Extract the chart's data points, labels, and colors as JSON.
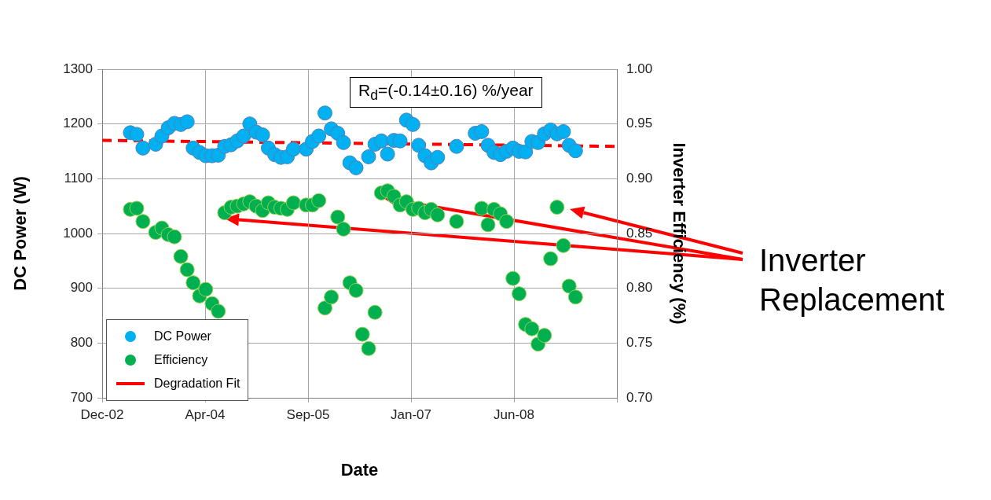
{
  "chart_data": {
    "type": "scatter",
    "xlabel": "Date",
    "ylabel": "DC Power (W)",
    "y2label": "Inverter Efficiency (%)",
    "xlim": [
      "2002-12-15",
      "2009-10-19"
    ],
    "xticks": [
      {
        "value": "2002-12-15",
        "label": "Dec-02"
      },
      {
        "value": "2004-04-28",
        "label": "Apr-04"
      },
      {
        "value": "2005-09-10",
        "label": "Sep-05"
      },
      {
        "value": "2007-01-23",
        "label": "Jan-07"
      },
      {
        "value": "2008-06-06",
        "label": "Jun-08"
      },
      {
        "value": "2009-10-19",
        "label": null
      }
    ],
    "ylim": [
      700,
      1300
    ],
    "yticks": [
      700,
      800,
      900,
      1000,
      1100,
      1200,
      1300
    ],
    "y2lim": [
      0.7,
      1.0
    ],
    "y2ticks": [
      {
        "value": 0.7,
        "label": "0.70"
      },
      0.75,
      {
        "value": 0.8,
        "label": "0.80"
      },
      0.85,
      {
        "value": 0.9,
        "label": "0.90"
      },
      0.95,
      {
        "value": 1.0,
        "label": "1.00"
      }
    ],
    "grid": true,
    "legend": "bottom left",
    "annotations": [
      "R$_{d}$=(-0.14±0.16) %/year",
      "Inverter Replacement"
    ],
    "series": [
      {
        "name": "DC Power",
        "marker": "circle",
        "color": "#00b0f0",
        "x": [
          "2003-05",
          "2003-06",
          "2003-07",
          "2003-09",
          "2003-10",
          "2003-11",
          "2003-12",
          "2004-01",
          "2004-02",
          "2004-03",
          "2004-04",
          "2004-05",
          "2004-06",
          "2004-07",
          "2004-08",
          "2004-09",
          "2004-10",
          "2004-11",
          "2004-12",
          "2005-01",
          "2005-02",
          "2005-03",
          "2005-04",
          "2005-05",
          "2005-06",
          "2005-07",
          "2005-09",
          "2005-10",
          "2005-11",
          "2005-12",
          "2006-01",
          "2006-02",
          "2006-03",
          "2006-04",
          "2006-05",
          "2006-07",
          "2006-08",
          "2006-09",
          "2006-10",
          "2006-11",
          "2006-12",
          "2007-01",
          "2007-02",
          "2007-03",
          "2007-04",
          "2007-05",
          "2007-06",
          "2007-09",
          "2007-12",
          "2008-01",
          "2008-02",
          "2008-03",
          "2008-04",
          "2008-05",
          "2008-06",
          "2008-07",
          "2008-08",
          "2008-09",
          "2008-10",
          "2008-11",
          "2008-12",
          "2009-01",
          "2009-02",
          "2009-03",
          "2009-04"
        ],
        "values": [
          1184,
          1181,
          1156,
          1163,
          1178,
          1193,
          1201,
          1199,
          1204,
          1156,
          1148,
          1142,
          1142,
          1143,
          1159,
          1162,
          1169,
          1178,
          1200,
          1185,
          1180,
          1156,
          1144,
          1139,
          1140,
          1154,
          1154,
          1168,
          1178,
          1220,
          1191,
          1183,
          1166,
          1129,
          1120,
          1140,
          1163,
          1169,
          1145,
          1170,
          1169,
          1207,
          1199,
          1161,
          1142,
          1129,
          1139,
          1159,
          1183,
          1186,
          1161,
          1148,
          1144,
          1150,
          1156,
          1150,
          1149,
          1168,
          1166,
          1182,
          1189,
          1182,
          1186,
          1161,
          1151
        ]
      },
      {
        "name": "Efficiency",
        "marker": "circle",
        "axis": "y2",
        "color": "#00b050",
        "x": [
          "2003-05",
          "2003-06",
          "2003-07",
          "2003-09",
          "2003-10",
          "2003-11",
          "2003-12",
          "2004-01",
          "2004-02",
          "2004-03",
          "2004-04",
          "2004-05",
          "2004-06",
          "2004-07",
          "2004-08",
          "2004-09",
          "2004-10",
          "2004-11",
          "2004-12",
          "2005-01",
          "2005-02",
          "2005-03",
          "2005-04",
          "2005-05",
          "2005-06",
          "2005-07",
          "2005-09",
          "2005-10",
          "2005-11",
          "2005-12",
          "2006-01",
          "2006-02",
          "2006-03",
          "2006-04",
          "2006-05",
          "2006-06",
          "2006-07",
          "2006-08",
          "2006-09",
          "2006-10",
          "2006-11",
          "2006-12",
          "2007-01",
          "2007-02",
          "2007-03",
          "2007-04",
          "2007-05",
          "2007-06",
          "2007-09",
          "2008-01",
          "2008-02",
          "2008-03",
          "2008-04",
          "2008-05",
          "2008-06",
          "2008-07",
          "2008-08",
          "2008-09",
          "2008-10",
          "2008-11",
          "2008-12",
          "2009-01",
          "2009-02",
          "2009-03",
          "2009-04"
        ],
        "values": [
          0.872,
          0.873,
          0.861,
          0.851,
          0.855,
          0.849,
          0.847,
          0.829,
          0.817,
          0.805,
          0.793,
          0.799,
          0.786,
          0.779,
          0.869,
          0.874,
          0.875,
          0.877,
          0.879,
          0.875,
          0.871,
          0.878,
          0.874,
          0.873,
          0.872,
          0.878,
          0.876,
          0.876,
          0.88,
          0.782,
          0.792,
          0.865,
          0.854,
          0.805,
          0.798,
          0.758,
          0.745,
          0.778,
          0.887,
          0.889,
          0.884,
          0.876,
          0.879,
          0.872,
          0.873,
          0.869,
          0.872,
          0.867,
          0.861,
          0.873,
          0.858,
          0.872,
          0.868,
          0.861,
          0.809,
          0.795,
          0.767,
          0.763,
          0.749,
          0.757,
          0.827,
          0.874,
          0.839,
          0.802,
          0.792
        ]
      },
      {
        "name": "Degradation Fit",
        "type": "line",
        "line_style": "dashed",
        "color": "#ff0000",
        "x": [
          "2002-12-15",
          "2009-10-19"
        ],
        "values": [
          1170,
          1159
        ]
      }
    ]
  }
}
